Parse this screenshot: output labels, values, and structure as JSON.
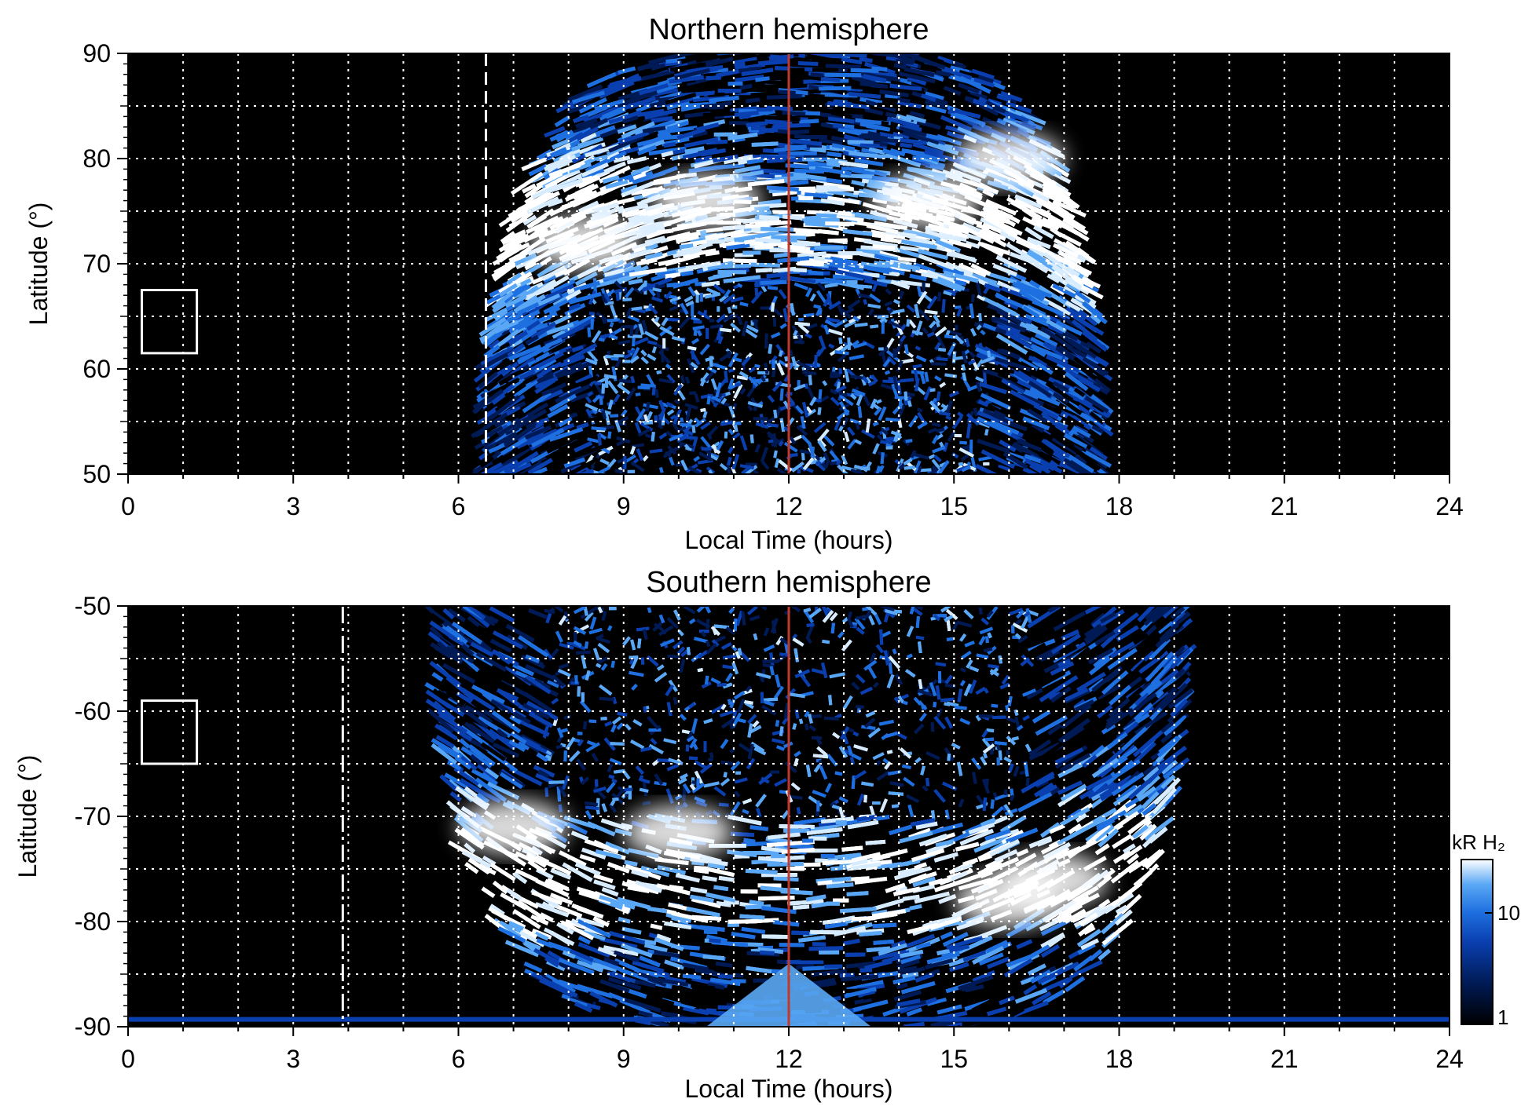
{
  "colors": {
    "background": "#000000",
    "grid": "#ffffff",
    "noon_line": "#c0392b",
    "colormap": [
      "#000000",
      "#001a55",
      "#0a3fb0",
      "#1e6fe0",
      "#5aa8f5",
      "#d8ecff",
      "#ffffff"
    ]
  },
  "chart_data": [
    {
      "type": "heatmap",
      "title": "Northern hemisphere",
      "xlabel": "Local Time (hours)",
      "ylabel": "Latitude (°)",
      "xlim": [
        0,
        24
      ],
      "ylim": [
        50,
        90
      ],
      "xticks": [
        "0",
        "3",
        "6",
        "9",
        "12",
        "15",
        "18",
        "21",
        "24"
      ],
      "yticks": [
        "50",
        "60",
        "70",
        "80",
        "90"
      ],
      "grid": true,
      "grid_x_step_hours": 1,
      "grid_y_step_deg": 5,
      "noon_line_hour": 12,
      "dashed_line_hour": 6.5,
      "box": {
        "lt": [
          0.25,
          1.25
        ],
        "lat": [
          61.5,
          67.5
        ]
      },
      "coverage_lt": [
        6.5,
        17.7
      ],
      "bright_patches": [
        {
          "lt": 8.3,
          "lat": 72,
          "intensity": "high"
        },
        {
          "lt": 10.5,
          "lat": 76,
          "intensity": "high"
        },
        {
          "lt": 14.5,
          "lat": 76,
          "intensity": "high"
        },
        {
          "lt": 16,
          "lat": 80,
          "intensity": "high"
        }
      ]
    },
    {
      "type": "heatmap",
      "title": "Southern hemisphere",
      "xlabel": "Local Time (hours)",
      "ylabel": "Latitude (°)",
      "xlim": [
        0,
        24
      ],
      "ylim": [
        -90,
        -50
      ],
      "xticks": [
        "0",
        "3",
        "6",
        "9",
        "12",
        "15",
        "18",
        "21",
        "24"
      ],
      "yticks": [
        "-90",
        "-80",
        "-70",
        "-60",
        "-50"
      ],
      "grid": true,
      "grid_x_step_hours": 1,
      "grid_y_step_deg": 5,
      "noon_line_hour": 12,
      "dashed_line_hour": 3.9,
      "box": {
        "lt": [
          0.25,
          1.25
        ],
        "lat": [
          -65,
          -59
        ]
      },
      "coverage_lt": [
        5.6,
        19.2
      ],
      "bright_patches": [
        {
          "lt": 7,
          "lat": -71,
          "intensity": "high"
        },
        {
          "lt": 10,
          "lat": -71.5,
          "intensity": "high"
        },
        {
          "lt": 16.8,
          "lat": -76,
          "intensity": "high"
        },
        {
          "lt": 16,
          "lat": -78,
          "intensity": "high"
        }
      ]
    }
  ],
  "colorbar": {
    "label": "kR H₂",
    "tick_labels": [
      "1",
      "10"
    ],
    "scale": "log"
  }
}
